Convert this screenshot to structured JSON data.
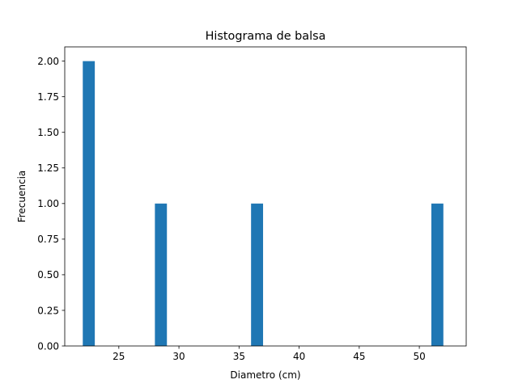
{
  "chart_data": {
    "type": "bar",
    "title": "Histograma de balsa",
    "xlabel": "Diametro (cm)",
    "ylabel": "Frecuencia",
    "xlim": [
      20.5,
      53.9
    ],
    "ylim": [
      0,
      2.1
    ],
    "xticks": [
      "25",
      "30",
      "35",
      "40",
      "45",
      "50"
    ],
    "yticks": [
      "0.00",
      "0.25",
      "0.50",
      "0.75",
      "1.00",
      "1.25",
      "1.50",
      "1.75",
      "2.00"
    ],
    "bins": [
      {
        "x0": 22.0,
        "x1": 23.0,
        "count": 2
      },
      {
        "x0": 28.0,
        "x1": 29.0,
        "count": 1
      },
      {
        "x0": 36.0,
        "x1": 37.0,
        "count": 1
      },
      {
        "x0": 51.0,
        "x1": 52.0,
        "count": 1
      }
    ],
    "bar_color": "#1f77b4",
    "grid": false,
    "legend": "none"
  }
}
